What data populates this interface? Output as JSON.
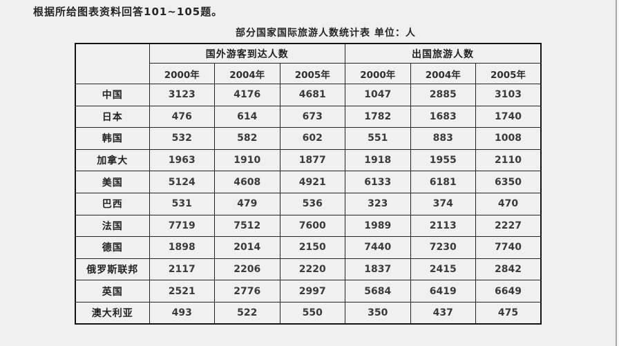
{
  "page": {
    "instruction": "根据所给图表资料回答101~105题。",
    "background_color": "#f0f0f1"
  },
  "table": {
    "title": "部分国家国际旅游人数统计表 单位：人",
    "group_headers": [
      "国外游客到达人数",
      "出国旅游人数"
    ],
    "year_headers": [
      "2000年",
      "2004年",
      "2005年",
      "2000年",
      "2004年",
      "2005年"
    ],
    "rows": [
      {
        "country": "中国",
        "values": [
          "3123",
          "4176",
          "4681",
          "1047",
          "2885",
          "3103"
        ]
      },
      {
        "country": "日本",
        "values": [
          "476",
          "614",
          "673",
          "1782",
          "1683",
          "1740"
        ]
      },
      {
        "country": "韩国",
        "values": [
          "532",
          "582",
          "602",
          "551",
          "883",
          "1008"
        ]
      },
      {
        "country": "加拿大",
        "values": [
          "1963",
          "1910",
          "1877",
          "1918",
          "1955",
          "2110"
        ]
      },
      {
        "country": "美国",
        "values": [
          "5124",
          "4608",
          "4921",
          "6133",
          "6181",
          "6350"
        ]
      },
      {
        "country": "巴西",
        "values": [
          "531",
          "479",
          "536",
          "323",
          "374",
          "470"
        ]
      },
      {
        "country": "法国",
        "values": [
          "7719",
          "7512",
          "7600",
          "1989",
          "2113",
          "2227"
        ]
      },
      {
        "country": "德国",
        "values": [
          "1898",
          "2014",
          "2150",
          "7440",
          "7230",
          "7740"
        ]
      },
      {
        "country": "俄罗斯联邦",
        "values": [
          "2117",
          "2206",
          "2220",
          "1837",
          "2415",
          "2842"
        ]
      },
      {
        "country": "英国",
        "values": [
          "2521",
          "2776",
          "2997",
          "5684",
          "6419",
          "6649"
        ]
      },
      {
        "country": "澳大利亚",
        "values": [
          "493",
          "522",
          "550",
          "350",
          "437",
          "475"
        ]
      }
    ]
  },
  "chart_data": {
    "type": "table",
    "title": "部分国家国际旅游人数统计表",
    "unit": "人",
    "column_groups": [
      {
        "label": "国外游客到达人数",
        "columns": [
          "2000年",
          "2004年",
          "2005年"
        ]
      },
      {
        "label": "出国旅游人数",
        "columns": [
          "2000年",
          "2004年",
          "2005年"
        ]
      }
    ],
    "rows": [
      {
        "country": "中国",
        "arrivals": [
          3123,
          4176,
          4681
        ],
        "outbound": [
          1047,
          2885,
          3103
        ]
      },
      {
        "country": "日本",
        "arrivals": [
          476,
          614,
          673
        ],
        "outbound": [
          1782,
          1683,
          1740
        ]
      },
      {
        "country": "韩国",
        "arrivals": [
          532,
          582,
          602
        ],
        "outbound": [
          551,
          883,
          1008
        ]
      },
      {
        "country": "加拿大",
        "arrivals": [
          1963,
          1910,
          1877
        ],
        "outbound": [
          1918,
          1955,
          2110
        ]
      },
      {
        "country": "美国",
        "arrivals": [
          5124,
          4608,
          4921
        ],
        "outbound": [
          6133,
          6181,
          6350
        ]
      },
      {
        "country": "巴西",
        "arrivals": [
          531,
          479,
          536
        ],
        "outbound": [
          323,
          374,
          470
        ]
      },
      {
        "country": "法国",
        "arrivals": [
          7719,
          7512,
          7600
        ],
        "outbound": [
          1989,
          2113,
          2227
        ]
      },
      {
        "country": "德国",
        "arrivals": [
          1898,
          2014,
          2150
        ],
        "outbound": [
          7440,
          7230,
          7740
        ]
      },
      {
        "country": "俄罗斯联邦",
        "arrivals": [
          2117,
          2206,
          2220
        ],
        "outbound": [
          1837,
          2415,
          2842
        ]
      },
      {
        "country": "英国",
        "arrivals": [
          2521,
          2776,
          2997
        ],
        "outbound": [
          5684,
          6419,
          6649
        ]
      },
      {
        "country": "澳大利亚",
        "arrivals": [
          493,
          522,
          550
        ],
        "outbound": [
          350,
          437,
          475
        ]
      }
    ]
  }
}
